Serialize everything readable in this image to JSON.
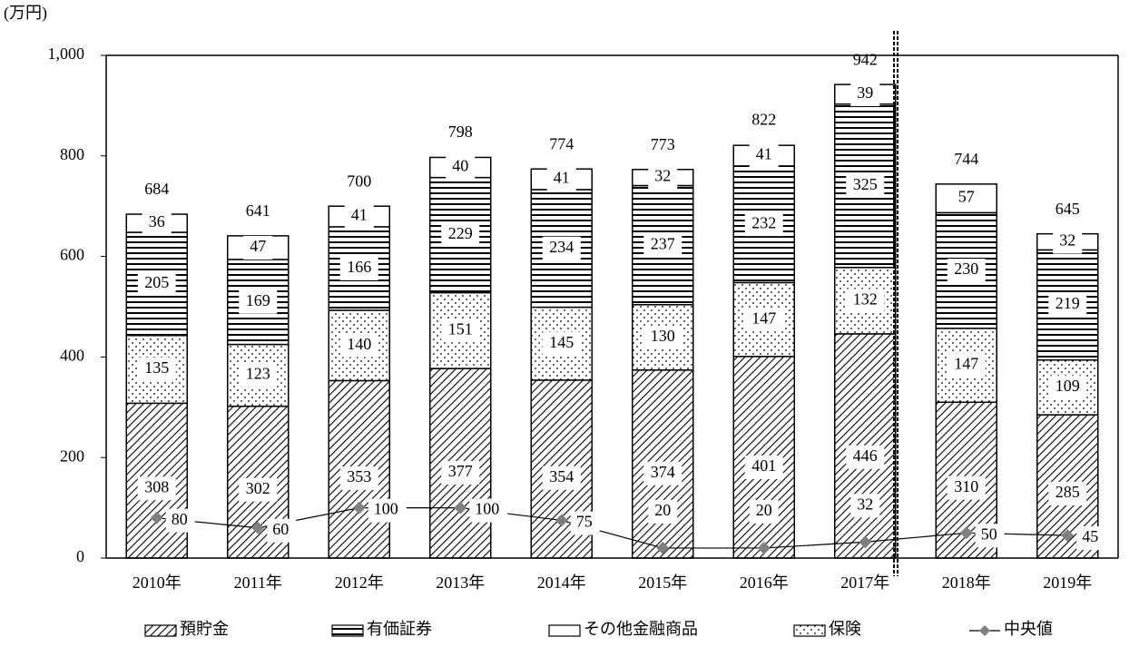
{
  "chart_data": {
    "type": "bar",
    "stacked": true,
    "y_unit": "(万円)",
    "categories": [
      "2010年",
      "2011年",
      "2012年",
      "2013年",
      "2014年",
      "2015年",
      "2016年",
      "2017年",
      "2018年",
      "2019年"
    ],
    "series": [
      {
        "name": "預貯金",
        "color": "#000000",
        "values": [
          308,
          302,
          353,
          377,
          354,
          374,
          401,
          446,
          310,
          285
        ]
      },
      {
        "name": "保険",
        "color": "#000000",
        "values": [
          135,
          123,
          140,
          151,
          145,
          130,
          147,
          132,
          147,
          109
        ]
      },
      {
        "name": "有価証券",
        "color": "#000000",
        "values": [
          205,
          169,
          166,
          229,
          234,
          237,
          232,
          325,
          230,
          219
        ]
      },
      {
        "name": "その他金融商品",
        "color": "#000000",
        "values": [
          36,
          47,
          41,
          40,
          41,
          32,
          41,
          39,
          57,
          32
        ]
      },
      {
        "name": "中央値",
        "type": "line",
        "color": "#7f7f7f",
        "values": [
          80,
          60,
          100,
          100,
          75,
          20,
          20,
          32,
          50,
          45
        ]
      }
    ],
    "totals": [
      684,
      641,
      700,
      798,
      774,
      773,
      822,
      942,
      744,
      645
    ],
    "ylim": [
      0,
      1000
    ],
    "yticks": [
      0,
      200,
      400,
      600,
      800,
      {
        "value": 1000,
        "label": "1,000"
      }
    ]
  }
}
